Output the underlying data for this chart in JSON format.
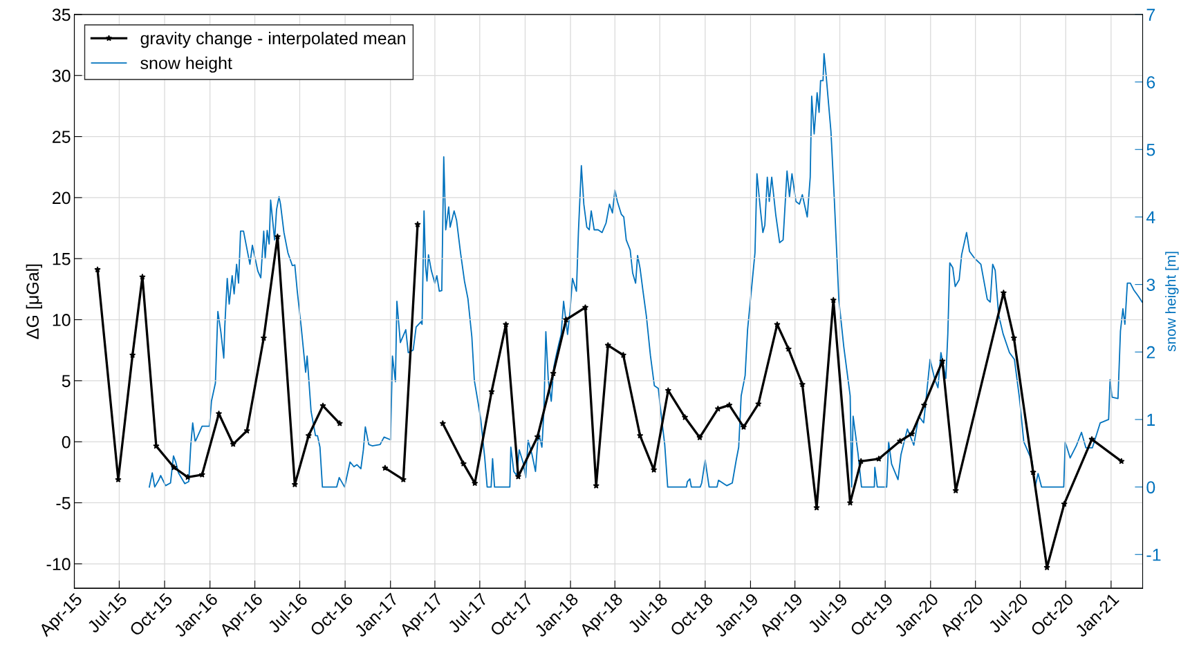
{
  "chart_data": {
    "type": "line",
    "ylabel": "ΔG [μGal]",
    "y2label": "snow height [m]",
    "xlim": [
      "2015-04-01",
      "2021-03-06"
    ],
    "ylim": [
      -12,
      35
    ],
    "y2lim": [
      -1.5,
      7
    ],
    "xticks": [
      {
        "value": "2015-04-01",
        "label": "Apr-15"
      },
      {
        "value": "2015-07-01",
        "label": "Jul-15"
      },
      {
        "value": "2015-10-01",
        "label": "Oct-15"
      },
      {
        "value": "2016-01-01",
        "label": "Jan-16"
      },
      {
        "value": "2016-04-01",
        "label": "Apr-16"
      },
      {
        "value": "2016-07-01",
        "label": "Jul-16"
      },
      {
        "value": "2016-10-01",
        "label": "Oct-16"
      },
      {
        "value": "2017-01-01",
        "label": "Jan-17"
      },
      {
        "value": "2017-04-01",
        "label": "Apr-17"
      },
      {
        "value": "2017-07-01",
        "label": "Jul-17"
      },
      {
        "value": "2017-10-01",
        "label": "Oct-17"
      },
      {
        "value": "2018-01-01",
        "label": "Jan-18"
      },
      {
        "value": "2018-04-01",
        "label": "Apr-18"
      },
      {
        "value": "2018-07-01",
        "label": "Jul-18"
      },
      {
        "value": "2018-10-01",
        "label": "Oct-18"
      },
      {
        "value": "2019-01-01",
        "label": "Jan-19"
      },
      {
        "value": "2019-04-01",
        "label": "Apr-19"
      },
      {
        "value": "2019-07-01",
        "label": "Jul-19"
      },
      {
        "value": "2019-10-01",
        "label": "Oct-19"
      },
      {
        "value": "2020-01-01",
        "label": "Jan-20"
      },
      {
        "value": "2020-04-01",
        "label": "Apr-20"
      },
      {
        "value": "2020-07-01",
        "label": "Jul-20"
      },
      {
        "value": "2020-10-01",
        "label": "Oct-20"
      },
      {
        "value": "2021-01-01",
        "label": "Jan-21"
      }
    ],
    "yticks": [
      -10,
      -5,
      0,
      5,
      10,
      15,
      20,
      25,
      30,
      35
    ],
    "y2ticks": [
      -1,
      0,
      1,
      2,
      3,
      4,
      5,
      6,
      7
    ],
    "grid": true,
    "legend": "top left",
    "series": [
      {
        "name": "gravity change - interpolated mean",
        "color": "#000000",
        "marker": "star",
        "line_style": "solid",
        "x": [
          "2015-05-18",
          "2015-06-29",
          "2015-07-28",
          "2015-08-17",
          "2015-09-14",
          "2015-10-20",
          "2015-11-17",
          "2015-12-16",
          "2016-01-19",
          "2016-02-17",
          "2016-03-16",
          "2016-04-19",
          "2016-05-17",
          "2016-06-21",
          "2016-07-19",
          "2016-08-17",
          "2016-09-20",
          "2016-11-05",
          "2016-12-21",
          "2017-01-27",
          "2017-02-25",
          "2017-03-25",
          "2017-04-17",
          "2017-05-29",
          "2017-06-21",
          "2017-07-25",
          "2017-08-23",
          "2017-09-17",
          "2017-10-26",
          "2017-11-27",
          "2017-12-23",
          "2018-01-31",
          "2018-02-22",
          "2018-03-18",
          "2018-04-18",
          "2018-05-22",
          "2018-06-19",
          "2018-07-18",
          "2018-08-21",
          "2018-09-20",
          "2018-10-27",
          "2018-11-19",
          "2018-12-18",
          "2019-01-17",
          "2019-02-24",
          "2019-03-19",
          "2019-04-16",
          "2019-05-15",
          "2019-06-18",
          "2019-07-22",
          "2019-08-13",
          "2019-09-18",
          "2019-10-31",
          "2019-11-24",
          "2019-12-19",
          "2020-01-25",
          "2020-02-21",
          "2020-05-28",
          "2020-06-18",
          "2020-07-27",
          "2020-08-24",
          "2020-09-28",
          "2020-11-23",
          "2021-01-22"
        ],
        "values": [
          14.1,
          -3.1,
          7.1,
          13.5,
          -0.35,
          -2.1,
          -2.9,
          -2.7,
          2.3,
          -0.2,
          0.9,
          8.5,
          16.8,
          -3.5,
          0.5,
          2.95,
          1.5,
          null,
          -2.15,
          -3.1,
          17.8,
          null,
          1.5,
          -1.8,
          -3.4,
          4.1,
          9.6,
          -2.85,
          0.4,
          5.6,
          10.0,
          11.0,
          -3.6,
          7.9,
          7.1,
          0.5,
          -2.3,
          4.2,
          2.0,
          0.35,
          2.7,
          3.0,
          1.2,
          3.1,
          9.6,
          7.6,
          4.7,
          -5.4,
          11.6,
          -5.0,
          -1.6,
          -1.4,
          0.05,
          0.65,
          3.0,
          6.6,
          -4.0,
          12.2,
          8.5,
          -2.5,
          -10.3,
          -5.1,
          0.2,
          -1.6
        ]
      },
      {
        "name": "snow height",
        "color": "#0072bd",
        "axis": "y2",
        "marker": "none",
        "line_style": "solid",
        "x": [
          "2015-08-31",
          "2015-09-06",
          "2015-09-11",
          "2015-09-19",
          "2015-09-23",
          "2015-10-03",
          "2015-10-13",
          "2015-10-19",
          "2015-10-24",
          "2015-10-29",
          "2015-11-11",
          "2015-11-19",
          "2015-11-23",
          "2015-11-27",
          "2015-12-02",
          "2015-12-10",
          "2015-12-16",
          "2015-12-31",
          "2016-01-04",
          "2016-01-12",
          "2016-01-17",
          "2016-01-23",
          "2016-01-29",
          "2016-01-31",
          "2016-02-05",
          "2016-02-09",
          "2016-02-15",
          "2016-02-19",
          "2016-02-24",
          "2016-02-28",
          "2016-03-03",
          "2016-03-09",
          "2016-03-22",
          "2016-03-27",
          "2016-04-07",
          "2016-04-13",
          "2016-04-19",
          "2016-04-22",
          "2016-04-26",
          "2016-04-30",
          "2016-05-03",
          "2016-05-11",
          "2016-05-15",
          "2016-05-20",
          "2016-05-23",
          "2016-05-30",
          "2016-06-07",
          "2016-06-16",
          "2016-06-21",
          "2016-06-26",
          "2016-07-04",
          "2016-07-13",
          "2016-07-16",
          "2016-07-24",
          "2016-08-02",
          "2016-08-06",
          "2016-08-11",
          "2016-08-16",
          "2016-09-14",
          "2016-09-19",
          "2016-09-30",
          "2016-10-05",
          "2016-10-11",
          "2016-10-19",
          "2016-10-25",
          "2016-11-02",
          "2016-11-07",
          "2016-11-11",
          "2016-11-18",
          "2016-11-25",
          "2016-12-11",
          "2016-12-19",
          "2017-01-01",
          "2017-01-05",
          "2017-01-11",
          "2017-01-14",
          "2017-01-21",
          "2017-02-01",
          "2017-02-06",
          "2017-02-16",
          "2017-02-22",
          "2017-03-04",
          "2017-03-06",
          "2017-03-10",
          "2017-03-13",
          "2017-03-16",
          "2017-03-19",
          "2017-03-25",
          "2017-04-01",
          "2017-04-05",
          "2017-04-10",
          "2017-04-15",
          "2017-04-19",
          "2017-04-23",
          "2017-04-29",
          "2017-05-02",
          "2017-05-10",
          "2017-05-15",
          "2017-05-23",
          "2017-05-31",
          "2017-06-07",
          "2017-06-15",
          "2017-06-20",
          "2017-06-28",
          "2017-07-03",
          "2017-07-11",
          "2017-07-16",
          "2017-07-24",
          "2017-07-27",
          "2017-07-31",
          "2017-08-31",
          "2017-09-02",
          "2017-09-08",
          "2017-09-14",
          "2017-09-19",
          "2017-09-27",
          "2017-10-02",
          "2017-10-07",
          "2017-10-15",
          "2017-10-22",
          "2017-10-28",
          "2017-11-04",
          "2017-11-08",
          "2017-11-12",
          "2017-11-17",
          "2017-11-23",
          "2017-11-28",
          "2017-12-03",
          "2017-12-08",
          "2017-12-13",
          "2017-12-18",
          "2017-12-26",
          "2017-12-31",
          "2018-01-05",
          "2018-01-13",
          "2018-01-17",
          "2018-01-23",
          "2018-01-28",
          "2018-02-03",
          "2018-02-08",
          "2018-02-12",
          "2018-02-18",
          "2018-02-26",
          "2018-03-06",
          "2018-03-14",
          "2018-03-21",
          "2018-03-27",
          "2018-04-01",
          "2018-04-06",
          "2018-04-14",
          "2018-04-19",
          "2018-04-24",
          "2018-05-02",
          "2018-05-07",
          "2018-05-13",
          "2018-05-17",
          "2018-05-22",
          "2018-05-28",
          "2018-06-04",
          "2018-06-12",
          "2018-06-20",
          "2018-06-28",
          "2018-07-03",
          "2018-07-11",
          "2018-07-17",
          "2018-08-24",
          "2018-08-26",
          "2018-08-31",
          "2018-09-03",
          "2018-09-21",
          "2018-09-24",
          "2018-10-01",
          "2018-10-09",
          "2018-10-25",
          "2018-10-28",
          "2018-11-14",
          "2018-11-25",
          "2018-12-03",
          "2018-12-08",
          "2018-12-13",
          "2018-12-21",
          "2018-12-26",
          "2018-12-31",
          "2019-01-05",
          "2019-01-10",
          "2019-01-14",
          "2019-01-21",
          "2019-01-26",
          "2019-01-30",
          "2019-02-04",
          "2019-02-08",
          "2019-02-13",
          "2019-02-21",
          "2019-03-01",
          "2019-03-08",
          "2019-03-16",
          "2019-03-21",
          "2019-03-26",
          "2019-04-03",
          "2019-04-10",
          "2019-04-16",
          "2019-04-26",
          "2019-05-02",
          "2019-05-05",
          "2019-05-10",
          "2019-05-16",
          "2019-05-20",
          "2019-05-23",
          "2019-05-28",
          "2019-05-30",
          "2019-06-03",
          "2019-06-13",
          "2019-06-20",
          "2019-06-29",
          "2019-07-09",
          "2019-07-22",
          "2019-07-25",
          "2019-07-28",
          "2019-08-07",
          "2019-08-14",
          "2019-09-09",
          "2019-09-10",
          "2019-09-15",
          "2019-10-04",
          "2019-10-08",
          "2019-10-14",
          "2019-10-27",
          "2019-11-02",
          "2019-11-15",
          "2019-11-28",
          "2019-12-08",
          "2019-12-18",
          "2019-12-31",
          "2020-01-09",
          "2020-01-16",
          "2020-01-22",
          "2020-02-01",
          "2020-02-05",
          "2020-02-09",
          "2020-02-15",
          "2020-02-20",
          "2020-02-28",
          "2020-03-04",
          "2020-03-14",
          "2020-03-20",
          "2020-03-30",
          "2020-04-12",
          "2020-04-25",
          "2020-05-01",
          "2020-05-06",
          "2020-05-11",
          "2020-05-18",
          "2020-05-27",
          "2020-06-09",
          "2020-06-19",
          "2020-06-29",
          "2020-07-08",
          "2020-07-25",
          "2020-07-31",
          "2020-08-06",
          "2020-08-13",
          "2020-09-27",
          "2020-09-30",
          "2020-10-10",
          "2020-10-23",
          "2020-11-02",
          "2020-11-11",
          "2020-11-24",
          "2020-12-10",
          "2020-12-27",
          "2020-12-30",
          "2021-01-03",
          "2021-01-15",
          "2021-01-20",
          "2021-01-25",
          "2021-01-29",
          "2021-02-03",
          "2021-02-09",
          "2021-02-16",
          "2021-02-25",
          "2021-03-05"
        ],
        "values": [
          0,
          0.21,
          0,
          0.1,
          0.17,
          0.02,
          0.06,
          0.46,
          0.36,
          0.21,
          0.05,
          0.08,
          0.61,
          0.95,
          0.67,
          0.8,
          0.9,
          0.9,
          1.27,
          1.54,
          2.6,
          2.3,
          1.91,
          2.37,
          3.09,
          2.71,
          3.13,
          2.86,
          3.3,
          3.02,
          3.79,
          3.79,
          3.3,
          3.58,
          3.2,
          3.1,
          3.79,
          3.39,
          3.8,
          3.6,
          4.25,
          3.66,
          4.11,
          4.3,
          4.19,
          3.77,
          3.47,
          3.28,
          3.29,
          2.9,
          2.37,
          1.7,
          1.94,
          1.12,
          0.76,
          0.76,
          0.59,
          0,
          0,
          0.14,
          0,
          0.17,
          0.37,
          0.3,
          0.33,
          0.27,
          0.55,
          0.89,
          0.63,
          0.61,
          0.63,
          0.74,
          0.7,
          1.94,
          1.56,
          2.75,
          2.14,
          2.33,
          1.99,
          2.03,
          2.37,
          2.45,
          2.41,
          4.09,
          3.28,
          3.05,
          3.44,
          3.2,
          3.02,
          3.13,
          2.9,
          2.91,
          4.89,
          3.81,
          4.15,
          3.85,
          4.09,
          3.95,
          3.47,
          3.05,
          2.79,
          2.22,
          1.58,
          1.23,
          1.0,
          0.44,
          0,
          0,
          0.42,
          0,
          0,
          0.59,
          0.23,
          0.17,
          0.55,
          0.36,
          0.14,
          0.69,
          0.48,
          0.23,
          0.82,
          0.59,
          1.12,
          2.3,
          1.58,
          1.27,
          1.77,
          1.95,
          2.11,
          2.26,
          2.75,
          2.26,
          2.6,
          3.09,
          2.9,
          3.77,
          4.76,
          4.19,
          3.85,
          3.81,
          4.09,
          3.81,
          3.81,
          3.77,
          3.91,
          4.19,
          4.06,
          4.4,
          4.23,
          4.04,
          4.0,
          3.66,
          3.51,
          3.17,
          3.02,
          3.43,
          3.24,
          2.9,
          2.52,
          1.95,
          1.5,
          1.46,
          1.12,
          0.63,
          0,
          0,
          0.08,
          0.12,
          0,
          0,
          0.06,
          0.4,
          0,
          0,
          0.1,
          0.02,
          0.06,
          0.4,
          0.59,
          1.35,
          1.65,
          2.33,
          2.71,
          3.09,
          3.47,
          4.64,
          4.11,
          3.77,
          3.88,
          4.59,
          4.23,
          4.59,
          4.04,
          3.62,
          3.66,
          4.68,
          4.3,
          4.64,
          4.23,
          4.19,
          4.33,
          4.0,
          4.59,
          5.79,
          5.23,
          5.84,
          5.55,
          6.02,
          6.02,
          6.42,
          6.12,
          5.27,
          4.24,
          2.78,
          2.08,
          1.35,
          0,
          1.05,
          0.49,
          0,
          0,
          0.29,
          0,
          0,
          0.67,
          0.34,
          0.11,
          0.48,
          0.86,
          0.62,
          1.05,
          0.95,
          1.89,
          1.61,
          1.47,
          1.99,
          1.61,
          2.27,
          3.32,
          3.25,
          2.97,
          3.07,
          3.44,
          3.77,
          3.49,
          3.39,
          3.3,
          2.78,
          2.74,
          3.3,
          3.21,
          2.55,
          2.27,
          1.99,
          1.89,
          1.33,
          0.67,
          0.38,
          0,
          0.2,
          0,
          0,
          0.67,
          0.43,
          0.62,
          0.81,
          0.58,
          0.58,
          0.95,
          1.0,
          1.59,
          1.33,
          1.31,
          2.31,
          2.64,
          2.41,
          3.02,
          3.02,
          2.92,
          2.83,
          2.74
        ]
      }
    ]
  }
}
